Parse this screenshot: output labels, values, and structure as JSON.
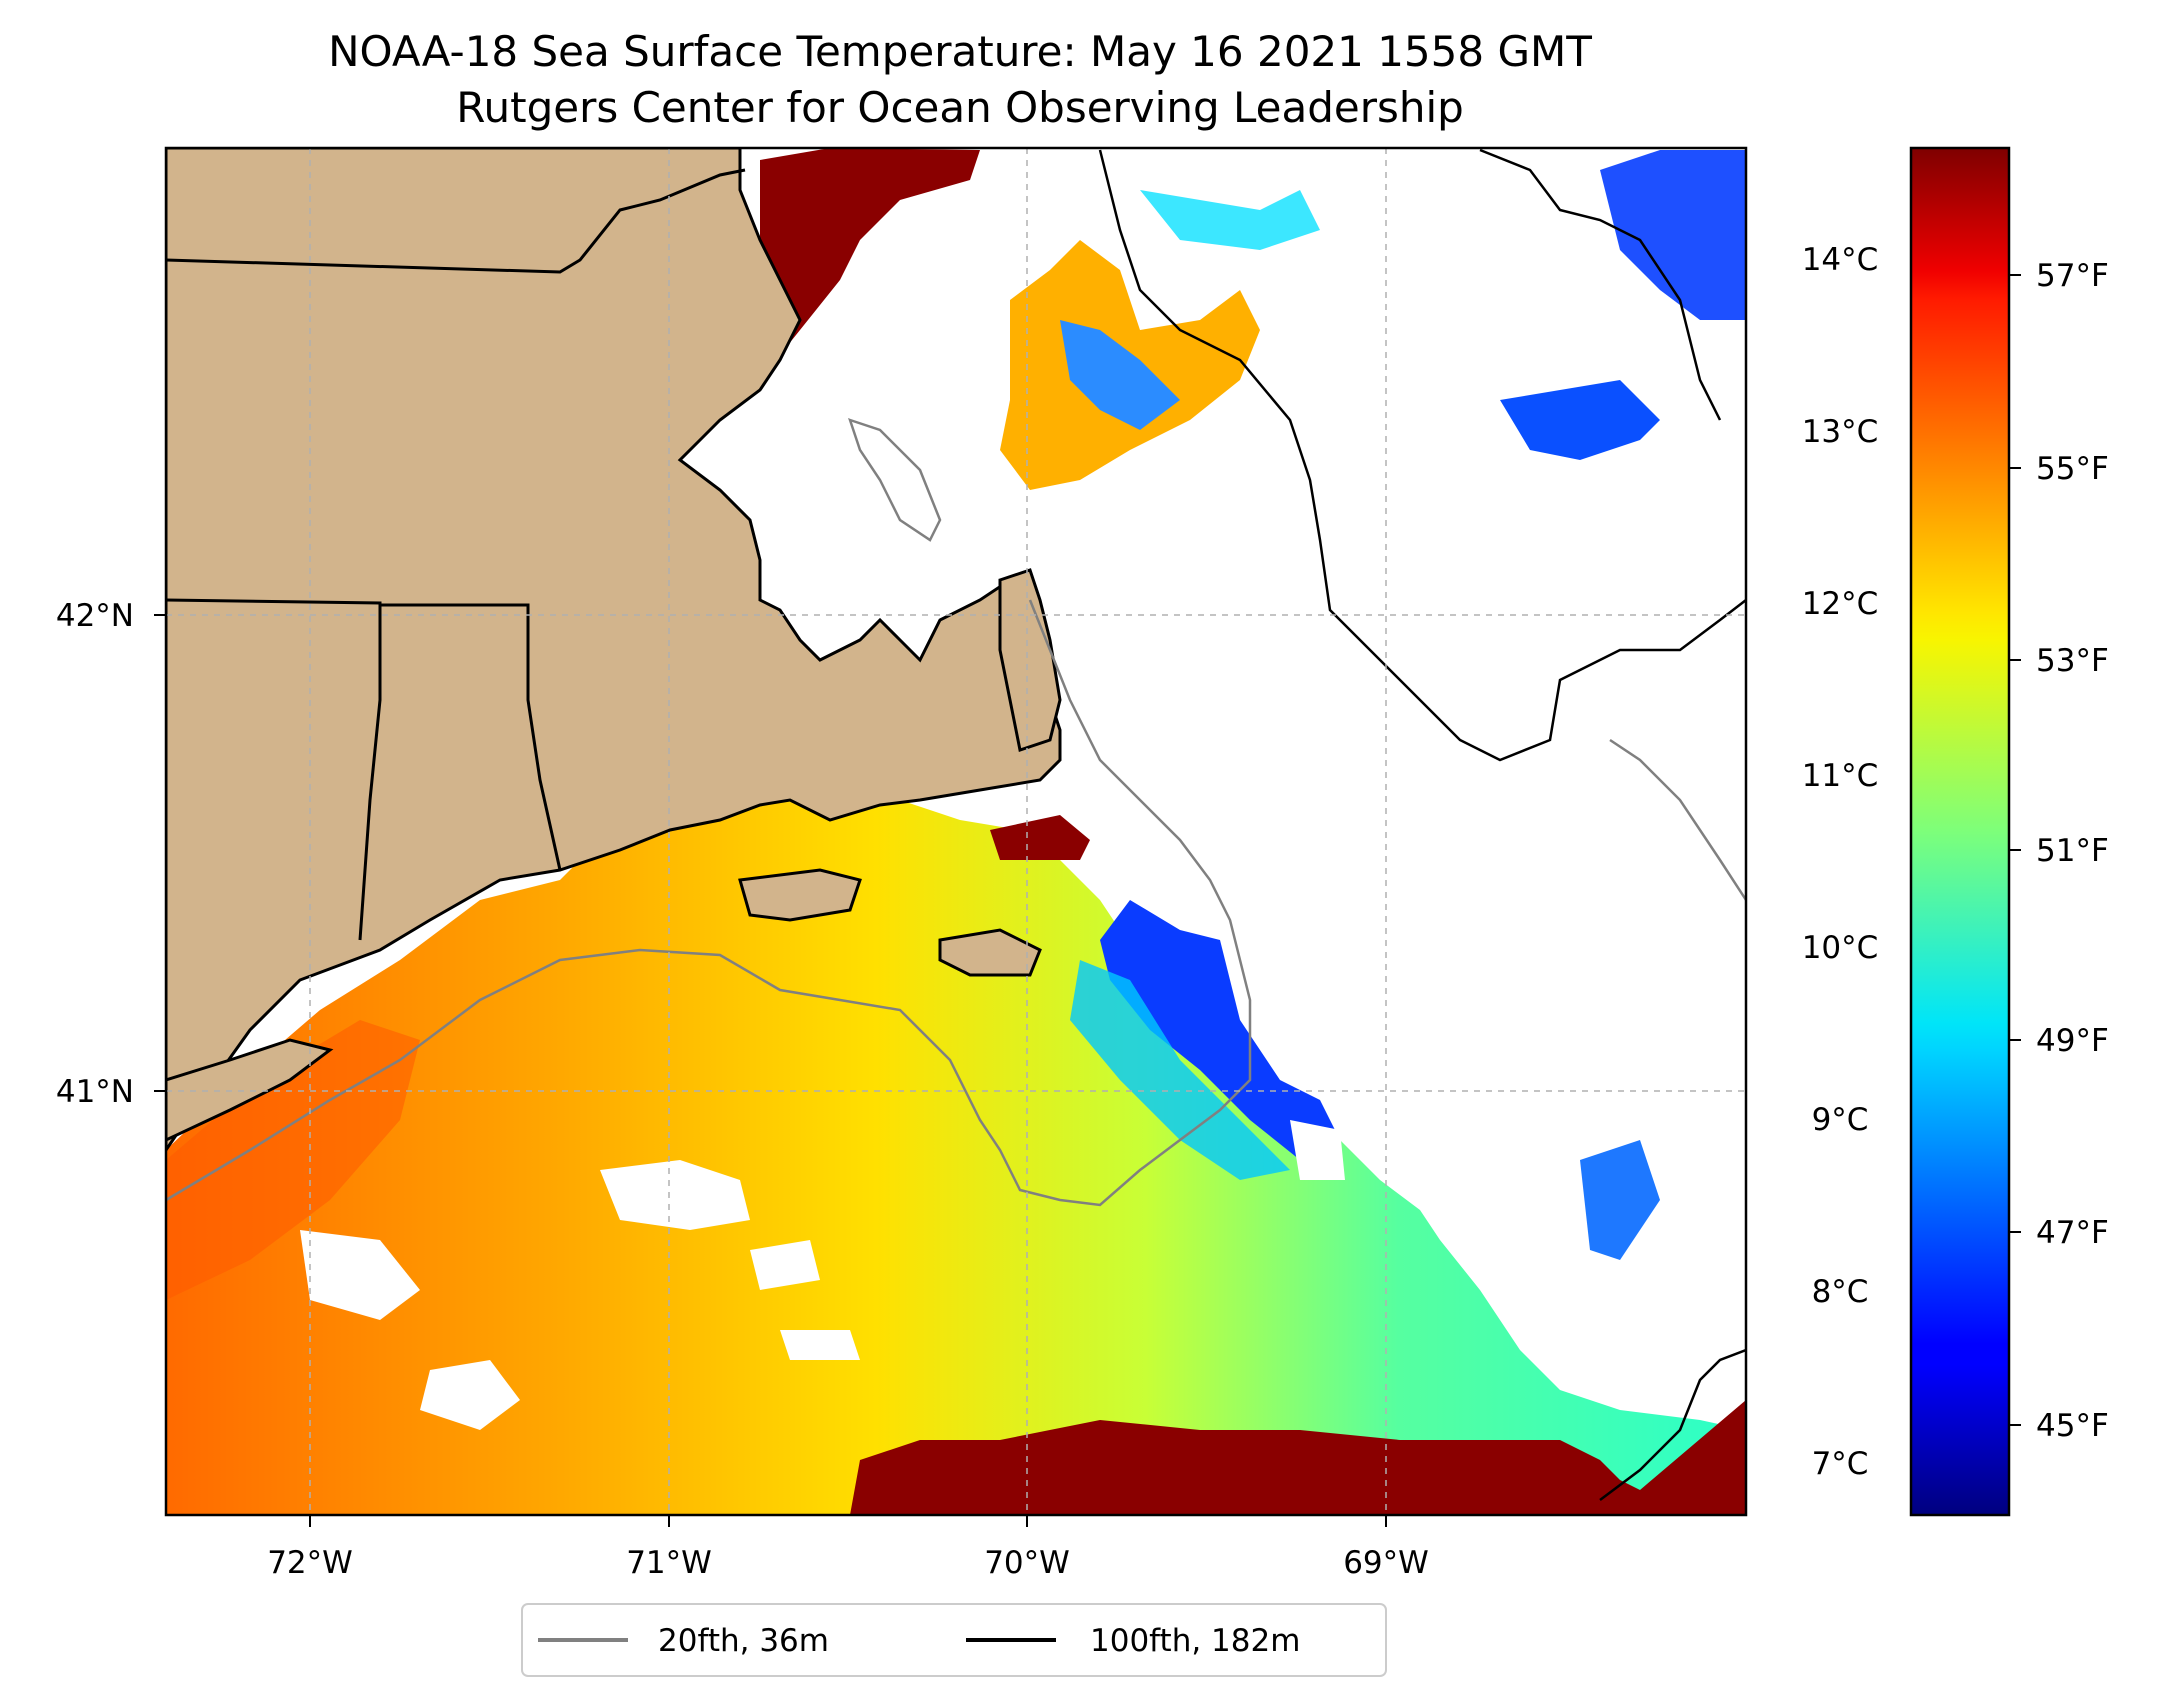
{
  "title": "NOAA-18 Sea Surface Temperature: May 16 2021 1558 GMT",
  "subtitle": "Rutgers Center for Ocean Observing Leadership",
  "map": {
    "lon_ticks": [
      "72°W",
      "71°W",
      "70°W",
      "69°W"
    ],
    "lat_ticks": [
      "42°N",
      "41°N"
    ],
    "gridlines": "dashed",
    "colors": {
      "land": "#d2b48c",
      "coastline": "#000000",
      "contour_20fth": "#808080",
      "contour_100fth": "#000000",
      "no_data": "#ffffff"
    }
  },
  "colorbar": {
    "colormap": "jet",
    "celsius_ticks": [
      "14°C",
      "13°C",
      "12°C",
      "11°C",
      "10°C",
      "9°C",
      "8°C",
      "7°C"
    ],
    "fahrenheit_ticks": [
      "57°F",
      "55°F",
      "53°F",
      "51°F",
      "49°F",
      "47°F",
      "45°F"
    ],
    "range_f": [
      44,
      58.5
    ]
  },
  "legend": {
    "items": [
      {
        "label": "20fth, 36m",
        "color": "#808080"
      },
      {
        "label": "100fth, 182m",
        "color": "#000000"
      }
    ]
  }
}
